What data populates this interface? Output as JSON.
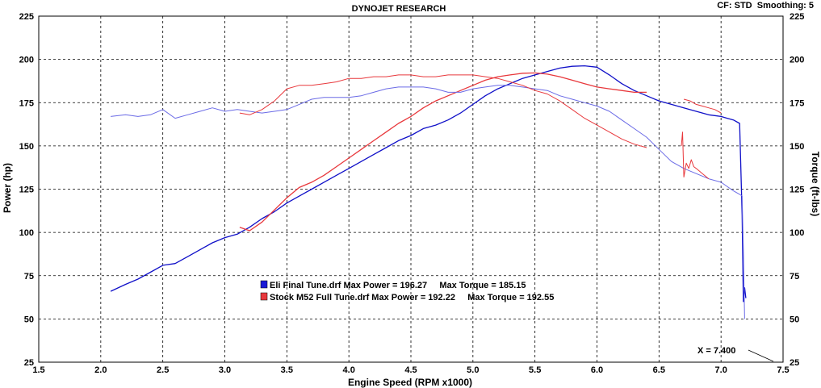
{
  "chart_data": {
    "type": "line",
    "title": "DYNOJET RESEARCH",
    "header_right": "CF: STD  Smoothing: 5",
    "xlabel": "Engine Speed (RPM x1000)",
    "ylabel_left": "Power (hp)",
    "ylabel_right": "Torque (ft-lbs)",
    "xlim": [
      1.5,
      7.5
    ],
    "ylim_left": [
      25,
      225
    ],
    "ylim_right": [
      25,
      225
    ],
    "x_ticks": [
      "1.5",
      "2.0",
      "2.5",
      "3.0",
      "3.5",
      "4.0",
      "4.5",
      "5.0",
      "5.5",
      "6.0",
      "6.5",
      "7.0",
      "7.5"
    ],
    "y_ticks_left": [
      "225",
      "200",
      "175",
      "150",
      "125",
      "100",
      "75",
      "50",
      "25"
    ],
    "y_ticks_right": [
      "225",
      "200",
      "175",
      "150",
      "125",
      "100",
      "75",
      "50",
      "25"
    ],
    "grid": true,
    "legend": [
      {
        "text": "Eli Final Tune.drf Max Power = 196.27     Max Torque = 185.15",
        "color": "#1a1ad6"
      },
      {
        "text": "Stock M52 Full Tune.drf Max Power = 192.22     Max Torque = 192.55",
        "color": "#e8383c"
      }
    ],
    "cursor_label": "X = 7.400",
    "series": [
      {
        "color": "#1010c8",
        "width": 1.3,
        "x": [
          2.08,
          2.2,
          2.3,
          2.4,
          2.5,
          2.6,
          2.7,
          2.8,
          2.9,
          3.0,
          3.1,
          3.2,
          3.3,
          3.4,
          3.5,
          3.6,
          3.7,
          3.8,
          3.9,
          4.0,
          4.1,
          4.2,
          4.3,
          4.4,
          4.5,
          4.6,
          4.7,
          4.8,
          4.9,
          5.0,
          5.1,
          5.2,
          5.3,
          5.4,
          5.5,
          5.6,
          5.7,
          5.8,
          5.9,
          6.0,
          6.1,
          6.2,
          6.3,
          6.4,
          6.5,
          6.6,
          6.7,
          6.8,
          6.9,
          7.0,
          7.05,
          7.1,
          7.15,
          7.17,
          7.18,
          7.19,
          7.2
        ],
        "values": [
          66,
          70,
          73,
          77,
          81,
          82,
          86,
          90,
          94,
          97,
          99,
          103,
          108,
          112,
          117,
          121,
          125,
          129,
          133,
          137,
          141,
          145,
          149,
          153,
          156,
          160,
          162,
          165,
          169,
          174,
          179,
          183,
          186,
          189,
          191,
          193,
          195,
          196,
          196.3,
          195.5,
          191,
          186,
          182,
          179,
          176,
          174,
          172,
          170,
          168,
          167,
          166,
          165,
          163,
          110,
          60,
          68,
          62
        ]
      },
      {
        "color": "#e8383c",
        "width": 1.3,
        "x": [
          3.12,
          3.2,
          3.3,
          3.4,
          3.5,
          3.6,
          3.7,
          3.8,
          3.9,
          4.0,
          4.1,
          4.2,
          4.3,
          4.4,
          4.5,
          4.6,
          4.7,
          4.8,
          4.9,
          5.0,
          5.1,
          5.2,
          5.3,
          5.4,
          5.5,
          5.6,
          5.7,
          5.8,
          5.9,
          6.0,
          6.1,
          6.2,
          6.3,
          6.4
        ],
        "values": [
          103,
          101,
          106,
          113,
          120,
          126,
          129,
          133,
          138,
          143,
          148,
          153,
          158,
          163,
          167,
          172,
          176,
          179,
          182,
          185,
          188,
          190,
          191,
          192,
          192.2,
          191.5,
          190,
          188,
          186,
          184,
          183,
          182,
          181,
          181
        ]
      },
      {
        "color": "#6a6ae6",
        "width": 1,
        "x": [
          2.08,
          2.2,
          2.3,
          2.4,
          2.5,
          2.6,
          2.7,
          2.8,
          2.9,
          3.0,
          3.1,
          3.2,
          3.3,
          3.4,
          3.5,
          3.6,
          3.7,
          3.8,
          3.9,
          4.0,
          4.1,
          4.2,
          4.3,
          4.4,
          4.5,
          4.6,
          4.7,
          4.8,
          4.9,
          5.0,
          5.1,
          5.2,
          5.3,
          5.4,
          5.5,
          5.6,
          5.7,
          5.8,
          5.9,
          6.0,
          6.1,
          6.2,
          6.3,
          6.4,
          6.5,
          6.6,
          6.7,
          6.8,
          6.9,
          7.0,
          7.1,
          7.15,
          7.17,
          7.18,
          7.19
        ],
        "values": [
          167,
          168,
          167,
          168,
          171,
          166,
          168,
          170,
          172,
          170,
          171,
          170,
          169,
          170,
          171,
          174,
          177,
          178,
          178,
          178,
          179,
          181,
          183,
          184,
          184,
          184,
          183,
          181,
          181,
          183,
          184,
          185,
          185,
          184,
          183,
          182,
          179,
          177,
          175,
          173,
          170,
          165,
          160,
          155,
          148,
          141,
          137,
          134,
          131,
          129,
          124,
          122,
          121,
          90,
          50
        ]
      },
      {
        "color": "#e8383c",
        "width": 1,
        "x": [
          3.12,
          3.2,
          3.3,
          3.4,
          3.5,
          3.6,
          3.7,
          3.8,
          3.9,
          4.0,
          4.1,
          4.2,
          4.3,
          4.4,
          4.5,
          4.6,
          4.7,
          4.8,
          4.9,
          5.0,
          5.1,
          5.2,
          5.3,
          5.4,
          5.5,
          5.6,
          5.7,
          5.8,
          5.9,
          6.0,
          6.1,
          6.2,
          6.3,
          6.4
        ],
        "values": [
          169,
          168,
          171,
          176,
          183,
          185,
          185,
          186,
          187,
          189,
          189,
          190,
          190,
          191,
          191,
          190,
          190,
          191,
          191,
          191,
          190,
          189,
          187,
          185,
          182,
          180,
          176,
          171,
          166,
          162,
          158,
          154,
          151,
          149
        ]
      },
      {
        "color": "#e8383c",
        "width": 1,
        "x": [
          6.7,
          6.75,
          6.8,
          6.85,
          6.9,
          6.95,
          7.0
        ],
        "values": [
          177,
          176,
          174,
          173,
          172,
          171,
          169
        ]
      },
      {
        "color": "#e8383c",
        "width": 1,
        "x": [
          6.68,
          6.69,
          6.7,
          6.71,
          6.72,
          6.74,
          6.76,
          6.78,
          6.8,
          6.85,
          6.9
        ],
        "values": [
          150,
          158,
          132,
          136,
          140,
          137,
          142,
          138,
          137,
          134,
          131
        ]
      }
    ]
  }
}
